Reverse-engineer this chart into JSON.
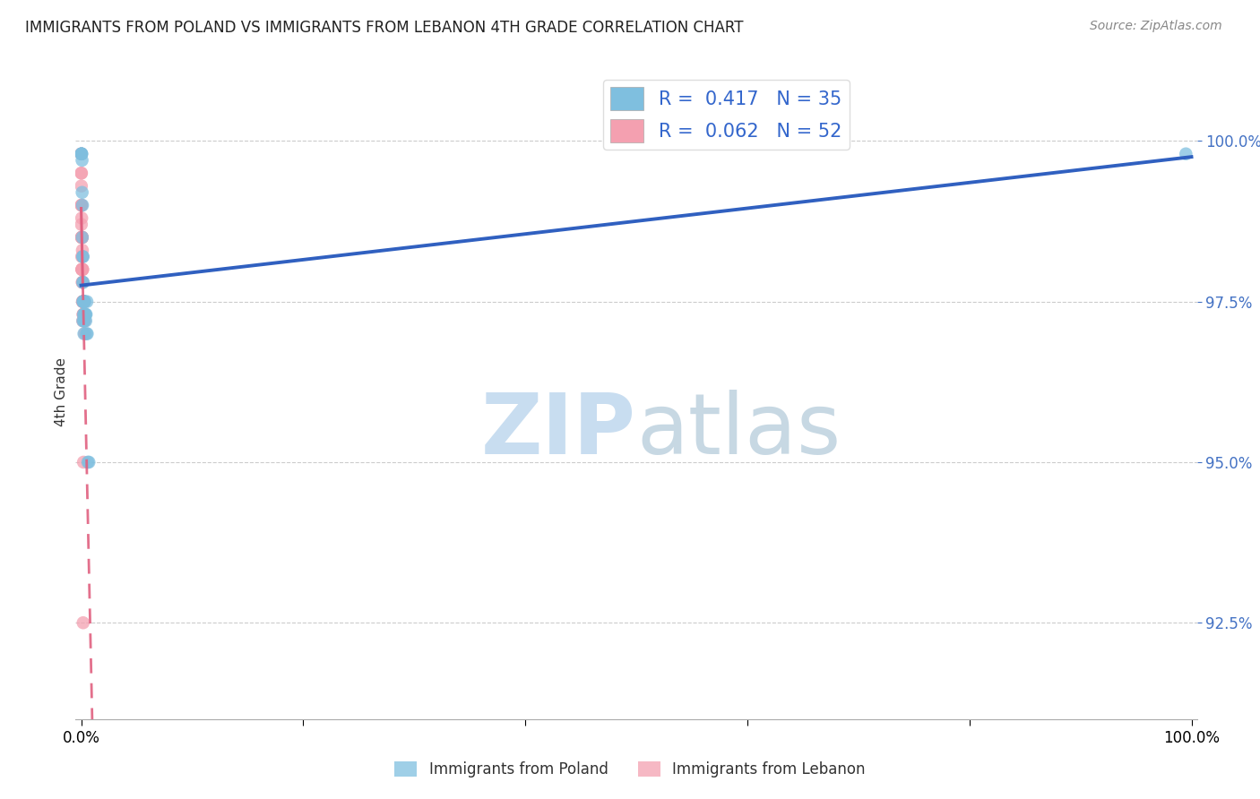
{
  "title": "IMMIGRANTS FROM POLAND VS IMMIGRANTS FROM LEBANON 4TH GRADE CORRELATION CHART",
  "source": "Source: ZipAtlas.com",
  "ylabel": "4th Grade",
  "ytick_values": [
    92.5,
    95.0,
    97.5,
    100.0
  ],
  "xmin": 0.0,
  "xmax": 100.0,
  "ymin": 91.0,
  "ymax": 101.2,
  "poland_R": 0.417,
  "poland_N": 35,
  "lebanon_R": 0.062,
  "lebanon_N": 52,
  "poland_color": "#7fbfdf",
  "lebanon_color": "#f4a0b0",
  "poland_line_color": "#3060c0",
  "lebanon_line_color": "#e06080",
  "bg_color": "#ffffff",
  "grid_color": "#cccccc",
  "poland_x": [
    0.02,
    0.03,
    0.04,
    0.05,
    0.08,
    0.09,
    0.1,
    0.12,
    0.13,
    0.14,
    0.15,
    0.16,
    0.18,
    0.19,
    0.2,
    0.21,
    0.22,
    0.23,
    0.24,
    0.25,
    0.26,
    0.28,
    0.3,
    0.32,
    0.35,
    0.38,
    0.4,
    0.42,
    0.45,
    0.48,
    0.52,
    0.55,
    0.6,
    0.7,
    99.5
  ],
  "poland_y": [
    99.8,
    99.8,
    99.8,
    99.8,
    99.7,
    99.2,
    98.5,
    99.0,
    98.2,
    97.8,
    97.5,
    97.2,
    98.2,
    97.8,
    97.5,
    97.3,
    97.5,
    97.5,
    97.2,
    97.0,
    97.3,
    97.2,
    97.5,
    97.5,
    97.3,
    97.3,
    97.3,
    97.2,
    97.3,
    97.0,
    97.5,
    97.0,
    95.0,
    95.0,
    99.8
  ],
  "lebanon_x": [
    0.01,
    0.01,
    0.01,
    0.02,
    0.02,
    0.02,
    0.03,
    0.03,
    0.03,
    0.04,
    0.04,
    0.05,
    0.05,
    0.06,
    0.06,
    0.07,
    0.07,
    0.08,
    0.08,
    0.09,
    0.09,
    0.1,
    0.1,
    0.11,
    0.11,
    0.12,
    0.12,
    0.13,
    0.13,
    0.14,
    0.14,
    0.15,
    0.15,
    0.16,
    0.17,
    0.18,
    0.19,
    0.2,
    0.21,
    0.22,
    0.23,
    0.24,
    0.25,
    0.26,
    0.27,
    0.28,
    0.29,
    0.3,
    0.31,
    0.32,
    0.21,
    0.18
  ],
  "lebanon_y": [
    99.8,
    99.8,
    99.5,
    99.3,
    99.0,
    98.7,
    99.5,
    99.0,
    98.5,
    99.0,
    98.5,
    98.8,
    98.2,
    98.5,
    98.0,
    98.5,
    98.0,
    98.5,
    98.0,
    98.5,
    98.0,
    98.5,
    97.8,
    98.3,
    97.8,
    98.2,
    97.5,
    98.0,
    97.5,
    98.0,
    97.2,
    97.8,
    97.5,
    97.5,
    97.3,
    97.5,
    97.3,
    97.5,
    97.3,
    97.5,
    97.3,
    97.5,
    97.3,
    97.5,
    97.2,
    97.3,
    97.2,
    97.5,
    97.2,
    97.0,
    95.0,
    92.5
  ]
}
